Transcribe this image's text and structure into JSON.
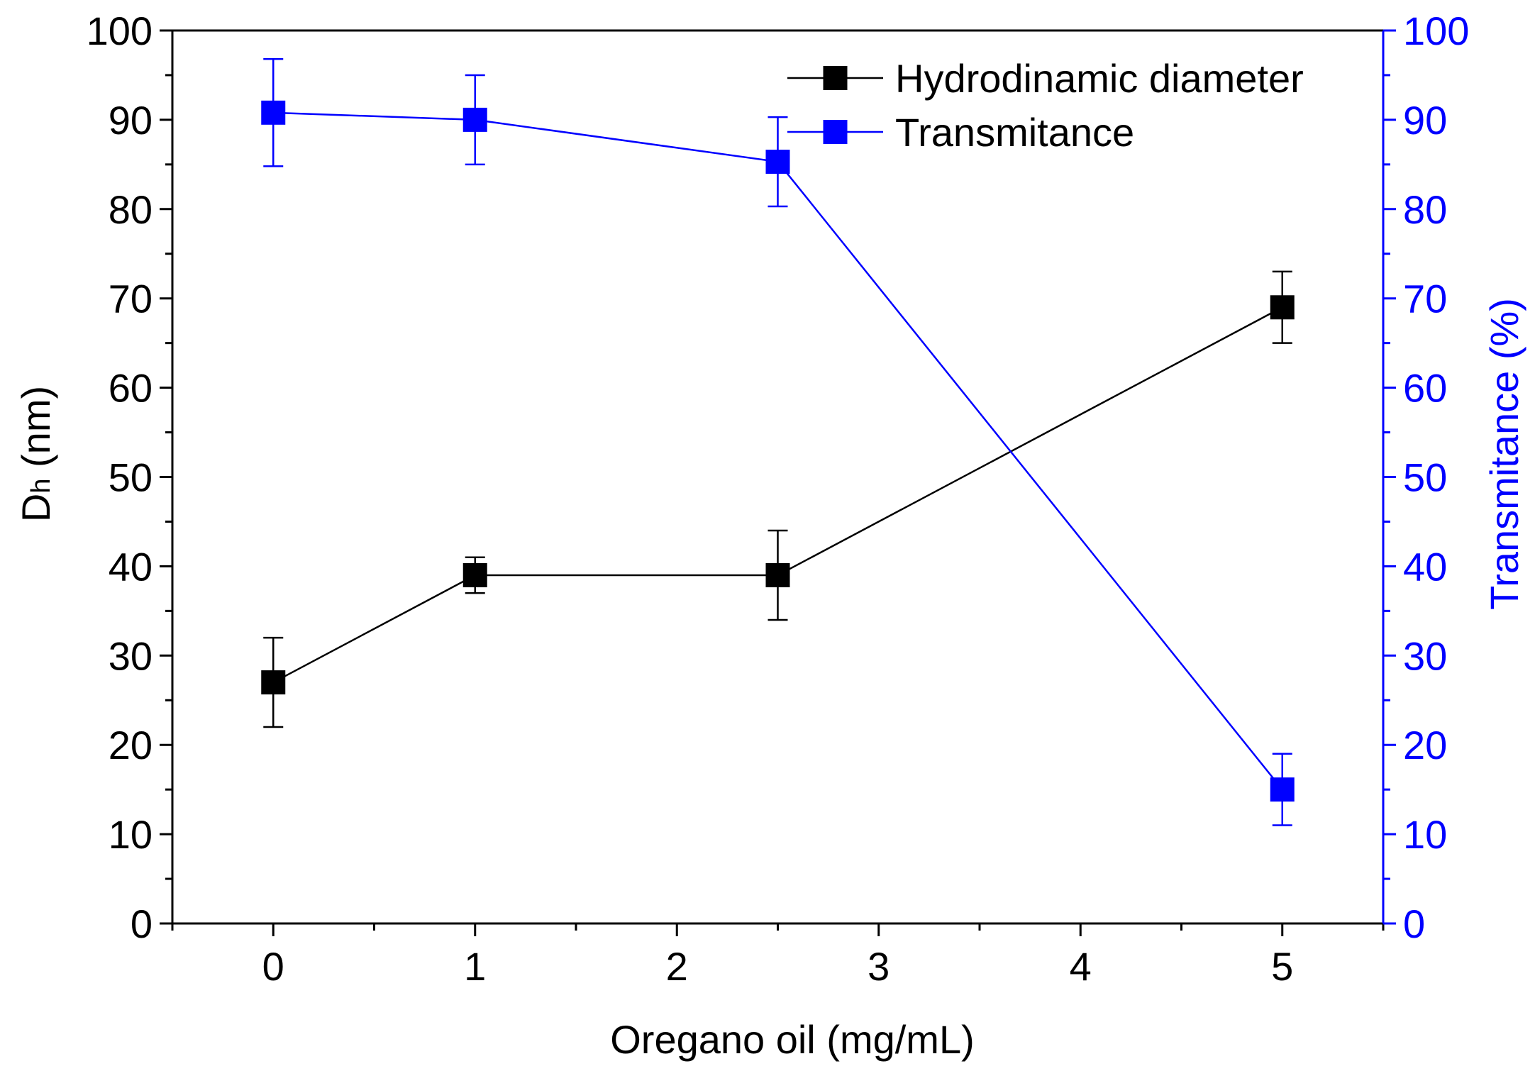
{
  "chart_data": {
    "type": "line",
    "x_axis": {
      "label": "Oregano oil (mg/mL)",
      "range": [
        -0.5,
        5.5
      ],
      "ticks": [
        0,
        1,
        2,
        3,
        4,
        5
      ],
      "tick_labels": [
        "0",
        "1",
        "2",
        "3",
        "4",
        "5"
      ],
      "minor_ticks": [
        -0.5,
        0.5,
        1.5,
        2.5,
        3.5,
        4.5,
        5.5
      ]
    },
    "y_left": {
      "label_main": "D",
      "label_sub": "h",
      "label_rest": " (nm)",
      "range": [
        0,
        100
      ],
      "ticks": [
        0,
        10,
        20,
        30,
        40,
        50,
        60,
        70,
        80,
        90,
        100
      ],
      "tick_labels": [
        "0",
        "10",
        "20",
        "30",
        "40",
        "50",
        "60",
        "70",
        "80",
        "90",
        "100"
      ],
      "color": "#000000"
    },
    "y_right": {
      "label": "Transmitance (%)",
      "range": [
        0,
        100
      ],
      "ticks": [
        0,
        10,
        20,
        30,
        40,
        50,
        60,
        70,
        80,
        90,
        100
      ],
      "tick_labels": [
        "0",
        "10",
        "20",
        "30",
        "40",
        "50",
        "60",
        "70",
        "80",
        "90",
        "100"
      ],
      "color": "#0000ff"
    },
    "series": [
      {
        "name": "Hydrodinamic diameter",
        "axis": "left",
        "color": "#000000",
        "marker": "square",
        "x": [
          0,
          1,
          2.5,
          5
        ],
        "y": [
          27,
          39,
          39,
          69
        ],
        "err": [
          5,
          2,
          5,
          4
        ]
      },
      {
        "name": "Transmitance",
        "axis": "right",
        "color": "#0000ff",
        "marker": "square",
        "x": [
          0,
          1,
          2.5,
          5
        ],
        "y": [
          90.8,
          90,
          85.3,
          15
        ],
        "err": [
          6,
          5,
          5,
          4
        ]
      }
    ],
    "legend_position": "top-right"
  }
}
